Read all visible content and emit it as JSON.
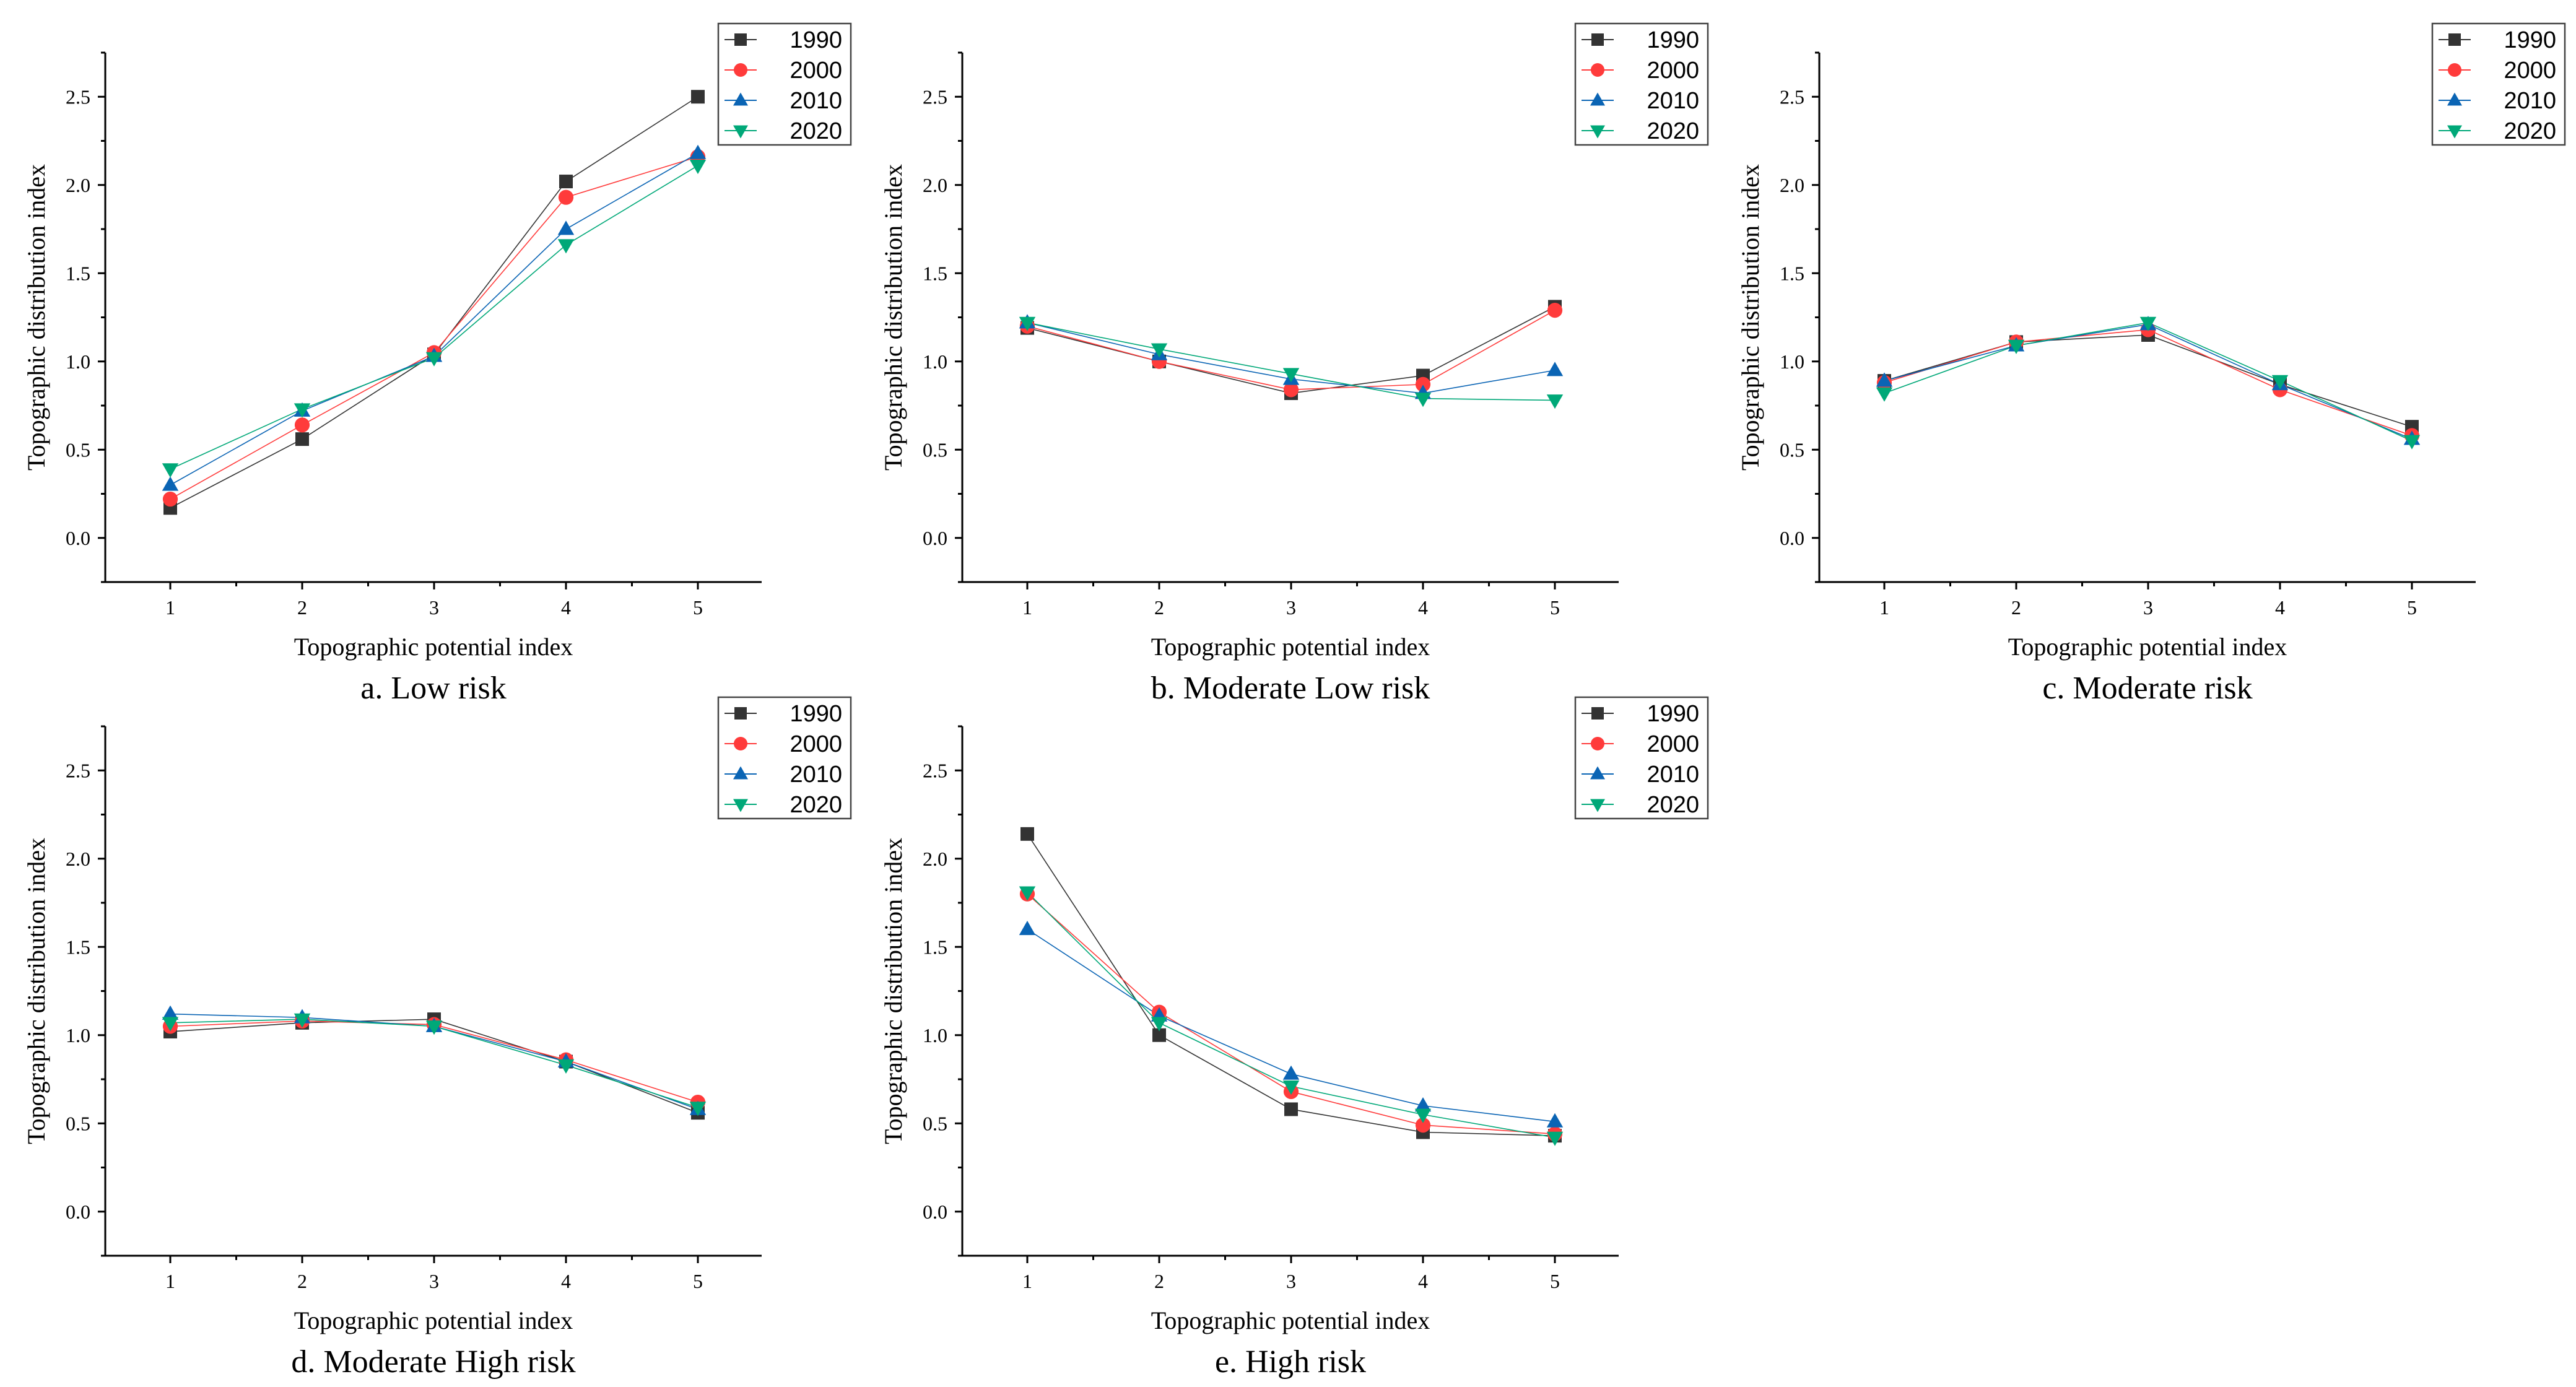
{
  "styles": {
    "1990": {
      "color": "#333333",
      "marker": "square"
    },
    "2000": {
      "color": "#ff3b3b",
      "marker": "circle"
    },
    "2010": {
      "color": "#0a64b4",
      "marker": "triangle-up"
    },
    "2020": {
      "color": "#00a878",
      "marker": "triangle-down"
    }
  },
  "chart_data": [
    {
      "type": "line",
      "caption": "a. Low risk",
      "xlabel": "Topographic potential index",
      "ylabel": "Topographic distribution index",
      "x": [
        1,
        2,
        3,
        4,
        5
      ],
      "xticks": [
        "1",
        "2",
        "3",
        "4",
        "5"
      ],
      "ylim": [
        -0.25,
        2.75
      ],
      "yticks": [
        "0.0",
        "0.5",
        "1.0",
        "1.5",
        "2.0",
        "2.5"
      ],
      "series": [
        {
          "name": "1990",
          "values": [
            0.17,
            0.56,
            1.04,
            2.02,
            2.5
          ]
        },
        {
          "name": "2000",
          "values": [
            0.22,
            0.64,
            1.05,
            1.93,
            2.16
          ]
        },
        {
          "name": "2010",
          "values": [
            0.3,
            0.72,
            1.03,
            1.75,
            2.18
          ]
        },
        {
          "name": "2020",
          "values": [
            0.39,
            0.73,
            1.02,
            1.66,
            2.11
          ]
        }
      ]
    },
    {
      "type": "line",
      "caption": "b. Moderate Low risk",
      "xlabel": "Topographic potential index",
      "ylabel": "Topographic distribution index",
      "x": [
        1,
        2,
        3,
        4,
        5
      ],
      "xticks": [
        "1",
        "2",
        "3",
        "4",
        "5"
      ],
      "ylim": [
        -0.25,
        2.75
      ],
      "yticks": [
        "0.0",
        "0.5",
        "1.0",
        "1.5",
        "2.0",
        "2.5"
      ],
      "series": [
        {
          "name": "1990",
          "values": [
            1.19,
            1.0,
            0.82,
            0.92,
            1.31
          ]
        },
        {
          "name": "2000",
          "values": [
            1.2,
            1.0,
            0.84,
            0.87,
            1.29
          ]
        },
        {
          "name": "2010",
          "values": [
            1.22,
            1.04,
            0.9,
            0.82,
            0.95
          ]
        },
        {
          "name": "2020",
          "values": [
            1.22,
            1.07,
            0.93,
            0.79,
            0.78
          ]
        }
      ]
    },
    {
      "type": "line",
      "caption": "c. Moderate  risk",
      "xlabel": "Topographic potential index",
      "ylabel": "Topographic distribution index",
      "x": [
        1,
        2,
        3,
        4,
        5
      ],
      "xticks": [
        "1",
        "2",
        "3",
        "4",
        "5"
      ],
      "ylim": [
        -0.25,
        2.75
      ],
      "yticks": [
        "0.0",
        "0.5",
        "1.0",
        "1.5",
        "2.0",
        "2.5"
      ],
      "series": [
        {
          "name": "1990",
          "values": [
            0.89,
            1.11,
            1.15,
            0.87,
            0.63
          ]
        },
        {
          "name": "2000",
          "values": [
            0.88,
            1.11,
            1.18,
            0.84,
            0.58
          ]
        },
        {
          "name": "2010",
          "values": [
            0.89,
            1.09,
            1.21,
            0.87,
            0.56
          ]
        },
        {
          "name": "2020",
          "values": [
            0.82,
            1.09,
            1.22,
            0.89,
            0.55
          ]
        }
      ]
    },
    {
      "type": "line",
      "caption": "d. Moderate High risk",
      "xlabel": "Topographic potential index",
      "ylabel": "Topographic distribution index",
      "x": [
        1,
        2,
        3,
        4,
        5
      ],
      "xticks": [
        "1",
        "2",
        "3",
        "4",
        "5"
      ],
      "ylim": [
        -0.25,
        2.75
      ],
      "yticks": [
        "0.0",
        "0.5",
        "1.0",
        "1.5",
        "2.0",
        "2.5"
      ],
      "series": [
        {
          "name": "1990",
          "values": [
            1.02,
            1.07,
            1.09,
            0.85,
            0.56
          ]
        },
        {
          "name": "2000",
          "values": [
            1.05,
            1.08,
            1.06,
            0.86,
            0.62
          ]
        },
        {
          "name": "2010",
          "values": [
            1.12,
            1.1,
            1.05,
            0.85,
            0.58
          ]
        },
        {
          "name": "2020",
          "values": [
            1.07,
            1.09,
            1.05,
            0.83,
            0.59
          ]
        }
      ]
    },
    {
      "type": "line",
      "caption": "e. High risk",
      "xlabel": "Topographic potential index",
      "ylabel": "Topographic distribution index",
      "x": [
        1,
        2,
        3,
        4,
        5
      ],
      "xticks": [
        "1",
        "2",
        "3",
        "4",
        "5"
      ],
      "ylim": [
        -0.25,
        2.75
      ],
      "yticks": [
        "0.0",
        "0.5",
        "1.0",
        "1.5",
        "2.0",
        "2.5"
      ],
      "series": [
        {
          "name": "1990",
          "values": [
            2.14,
            1.0,
            0.58,
            0.45,
            0.43
          ]
        },
        {
          "name": "2000",
          "values": [
            1.8,
            1.13,
            0.68,
            0.49,
            0.44
          ]
        },
        {
          "name": "2010",
          "values": [
            1.6,
            1.11,
            0.78,
            0.6,
            0.51
          ]
        },
        {
          "name": "2020",
          "values": [
            1.81,
            1.07,
            0.71,
            0.55,
            0.42
          ]
        }
      ]
    }
  ]
}
